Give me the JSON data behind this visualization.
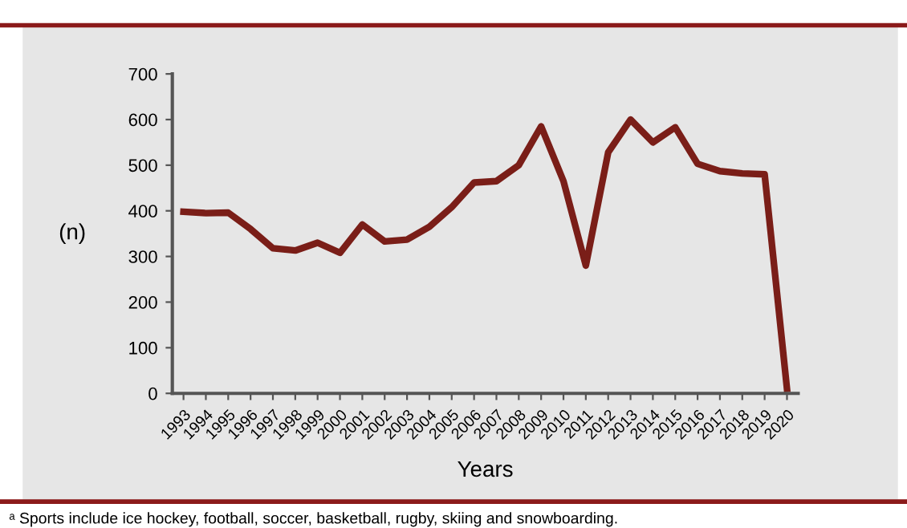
{
  "chart_data": {
    "type": "line",
    "xlabel": "Years",
    "ylabel": "(n)",
    "categories": [
      "1993",
      "1994",
      "1995",
      "1996",
      "1997",
      "1998",
      "1999",
      "2000",
      "2001",
      "2002",
      "2003",
      "2004",
      "2005",
      "2006",
      "2007",
      "2008",
      "2009",
      "2010",
      "2011",
      "2012",
      "2013",
      "2014",
      "2015",
      "2016",
      "2017",
      "2018",
      "2019",
      "2020"
    ],
    "series": [
      {
        "color": "#7a1e18",
        "values": [
          398,
          395,
          396,
          360,
          318,
          313,
          330,
          308,
          370,
          333,
          337,
          365,
          408,
          462,
          465,
          500,
          585,
          465,
          280,
          528,
          600,
          550,
          583,
          503,
          487,
          482,
          480,
          10
        ]
      }
    ],
    "ylim": [
      0,
      700
    ],
    "yticks": [
      0,
      100,
      200,
      300,
      400,
      500,
      600,
      700
    ],
    "grid": false,
    "legend": false,
    "marker": "none",
    "line_style": "solid",
    "annotations": [
      "ᵃ Sports include ice hockey, football, soccer, basketball, rugby, skiing and snowboarding."
    ]
  }
}
